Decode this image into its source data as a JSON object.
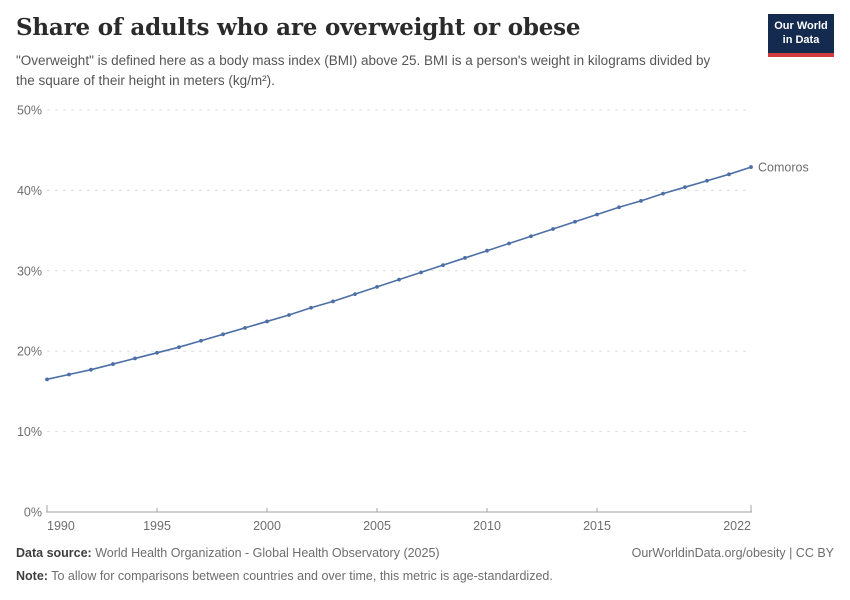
{
  "header": {
    "title": "Share of adults who are overweight or obese",
    "subtitle": "\"Overweight\" is defined here as a body mass index (BMI) above 25. BMI is a person's weight in kilograms divided by the square of their height in meters (kg/m²).",
    "logo": {
      "line1": "Our World",
      "line2": "in Data"
    }
  },
  "chart_data": {
    "type": "line",
    "title": "Share of adults who are overweight or obese",
    "xlabel": "",
    "ylabel": "",
    "xlim": [
      1990,
      2022
    ],
    "ylim": [
      0,
      50
    ],
    "x_ticks": [
      1990,
      1995,
      2000,
      2005,
      2010,
      2015,
      2022
    ],
    "y_ticks": [
      0,
      10,
      20,
      30,
      40,
      50
    ],
    "y_tick_suffix": "%",
    "grid": "horizontal-dashed",
    "legend_position": "end-of-line-label",
    "x": [
      1990,
      1991,
      1992,
      1993,
      1994,
      1995,
      1996,
      1997,
      1998,
      1999,
      2000,
      2001,
      2002,
      2003,
      2004,
      2005,
      2006,
      2007,
      2008,
      2009,
      2010,
      2011,
      2012,
      2013,
      2014,
      2015,
      2016,
      2017,
      2018,
      2019,
      2020,
      2021,
      2022
    ],
    "series": [
      {
        "name": "Comoros",
        "color": "#4C6FA5",
        "values": [
          16.5,
          17.1,
          17.7,
          18.4,
          19.1,
          19.8,
          20.5,
          21.3,
          22.1,
          22.9,
          23.7,
          24.5,
          25.4,
          26.2,
          27.1,
          28.0,
          28.9,
          29.8,
          30.7,
          31.6,
          32.5,
          33.4,
          34.3,
          35.2,
          36.1,
          37.0,
          37.9,
          38.7,
          39.6,
          40.4,
          41.2,
          42.0,
          42.9
        ]
      }
    ]
  },
  "footer": {
    "data_source_label": "Data source:",
    "data_source_text": " World Health Organization - Global Health Observatory (2025)",
    "note_label": "Note:",
    "note_text": " To allow for comparisons between countries and over time, this metric is age-standardized.",
    "credit": "OurWorldinData.org/obesity | CC BY"
  },
  "colors": {
    "accent_line": "#4C6FA5",
    "gridline": "#dedede",
    "axis": "#a3a3a3",
    "tick_label": "#6e6e6e",
    "logo_navy": "#142a4e",
    "logo_red": "#d13b3f"
  }
}
